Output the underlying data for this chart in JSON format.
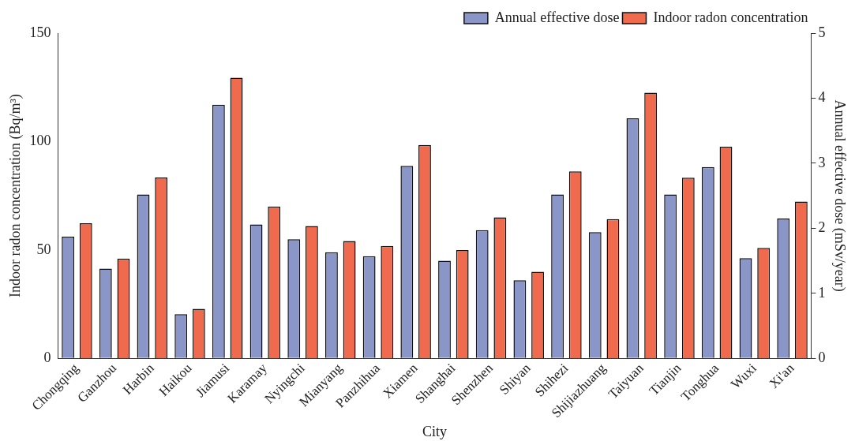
{
  "chart_data": {
    "type": "bar",
    "xlabel": "City",
    "ylabel": "Indoor radon concentration (Bq/m³)",
    "y2label": "Annual effective dose (mSv/year)",
    "categories": [
      "Chongqing",
      "Ganzhou",
      "Harbin",
      "Haikou",
      "Jiamusi",
      "Karamay",
      "Nyingchi",
      "Mianyang",
      "Panzhihua",
      "Xiamen",
      "Shanghai",
      "Shenzhen",
      "Shiyan",
      "Shihezi",
      "Shijiazhuang",
      "Taiyuan",
      "Tianjin",
      "Tonghua",
      "Wuxi",
      "Xi'an"
    ],
    "series": [
      {
        "name": "Annual effective dose",
        "color": "#8b96c8",
        "axis": "y2",
        "values": [
          1.87,
          1.38,
          2.52,
          0.68,
          3.9,
          2.06,
          1.83,
          1.63,
          1.57,
          2.96,
          1.5,
          1.97,
          1.2,
          2.52,
          1.94,
          3.69,
          2.52,
          2.94,
          1.54,
          2.15
        ]
      },
      {
        "name": "Indoor radon concentration",
        "color": "#f06a4e",
        "values": [
          62.3,
          46.0,
          83.4,
          22.8,
          129.4,
          70.0,
          61.0,
          54.1,
          51.8,
          98.4,
          49.9,
          65.0,
          39.9,
          86.2,
          64.2,
          122.5,
          83.3,
          97.6,
          50.9,
          72.3
        ]
      }
    ],
    "ylim": [
      0,
      150
    ],
    "yticks": [
      0,
      50,
      100,
      150
    ],
    "y2lim": [
      0,
      5
    ],
    "y2ticks": [
      0,
      1,
      2,
      3,
      4,
      5
    ],
    "grid": false,
    "legend": "top right"
  }
}
